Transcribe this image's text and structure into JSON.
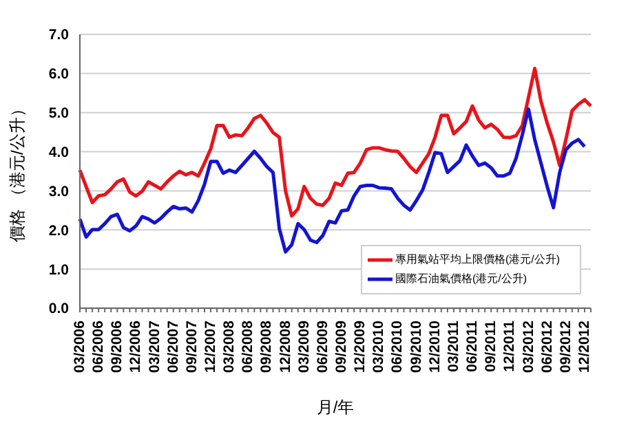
{
  "chart_data": {
    "type": "line",
    "xlabel": "月/年",
    "ylabel": "價格 （港元/公升）",
    "categories": [
      "03/2006",
      null,
      null,
      "06/2006",
      null,
      null,
      "09/2006",
      null,
      null,
      "12/2006",
      null,
      null,
      "03/2007",
      null,
      null,
      "06/2007",
      null,
      null,
      "09/2007",
      null,
      null,
      "12/2007",
      null,
      null,
      "03/2008",
      null,
      null,
      "06/2008",
      null,
      null,
      "09/2008",
      null,
      null,
      "12/2008",
      null,
      null,
      "03/2009",
      null,
      null,
      "06/2009",
      null,
      null,
      "09/2009",
      null,
      null,
      "12/2009",
      null,
      null,
      "03/2010",
      null,
      null,
      "06/2010",
      null,
      null,
      "09/2010",
      null,
      null,
      "12/2010",
      null,
      null,
      "03/2011",
      null,
      null,
      "06/2011",
      null,
      null,
      "09/2011",
      null,
      null,
      "12/2011",
      null,
      null,
      "03/2012",
      null,
      null,
      "06/2012",
      null,
      null,
      "09/2012",
      null,
      null,
      "12/2012",
      null
    ],
    "series": [
      {
        "name": "專用氣站平均上限價格(港元/公升)",
        "color": "#e8141b",
        "values": [
          3.53,
          3.11,
          2.7,
          2.87,
          2.9,
          3.05,
          3.23,
          3.3,
          2.97,
          2.87,
          2.99,
          3.23,
          3.14,
          3.05,
          3.23,
          3.38,
          3.5,
          3.41,
          3.47,
          3.38,
          3.71,
          4.07,
          4.67,
          4.67,
          4.37,
          4.43,
          4.41,
          4.61,
          4.85,
          4.93,
          4.73,
          4.49,
          4.37,
          3.0,
          2.36,
          2.54,
          3.11,
          2.81,
          2.66,
          2.63,
          2.81,
          3.2,
          3.14,
          3.45,
          3.47,
          3.71,
          4.05,
          4.1,
          4.1,
          4.05,
          4.02,
          4.01,
          3.83,
          3.62,
          3.47,
          3.71,
          3.95,
          4.37,
          4.93,
          4.93,
          4.46,
          4.61,
          4.77,
          5.17,
          4.81,
          4.61,
          4.7,
          4.57,
          4.37,
          4.36,
          4.41,
          4.67,
          5.39,
          6.13,
          5.29,
          4.73,
          4.25,
          3.65,
          4.31,
          5.05,
          5.21,
          5.33,
          5.17
        ]
      },
      {
        "name": "國際石油氣價格(港元/公升)",
        "color": "#1414d2",
        "values": [
          2.28,
          1.82,
          2.01,
          2.01,
          2.16,
          2.34,
          2.4,
          2.06,
          1.98,
          2.1,
          2.34,
          2.28,
          2.18,
          2.3,
          2.46,
          2.6,
          2.54,
          2.56,
          2.46,
          2.75,
          3.17,
          3.75,
          3.75,
          3.45,
          3.53,
          3.47,
          3.65,
          3.83,
          4.01,
          3.83,
          3.62,
          3.47,
          2.04,
          1.44,
          1.62,
          2.16,
          2.01,
          1.74,
          1.68,
          1.86,
          2.22,
          2.18,
          2.49,
          2.51,
          2.87,
          3.11,
          3.14,
          3.14,
          3.08,
          3.07,
          3.05,
          2.81,
          2.63,
          2.51,
          2.75,
          3.02,
          3.47,
          3.98,
          3.95,
          3.47,
          3.62,
          3.77,
          4.17,
          3.89,
          3.65,
          3.71,
          3.59,
          3.38,
          3.38,
          3.45,
          3.83,
          4.43,
          5.09,
          4.31,
          3.71,
          3.11,
          2.57,
          3.47,
          4.05,
          4.22,
          4.31,
          4.13,
          null
        ]
      }
    ],
    "ylim": [
      0,
      7
    ],
    "yticks": [
      {
        "value": 0,
        "label": "0.0"
      },
      {
        "value": 1,
        "label": "1.0"
      },
      {
        "value": 2,
        "label": "2.0"
      },
      {
        "value": 3,
        "label": "3.0"
      },
      {
        "value": 4,
        "label": "4.0"
      },
      {
        "value": 5,
        "label": "5.0"
      },
      {
        "value": 6,
        "label": "6.0"
      },
      {
        "value": 7,
        "label": "7.0"
      }
    ],
    "grid": "y",
    "legend": "bottom right",
    "marker": "none",
    "line_style": "solid"
  }
}
